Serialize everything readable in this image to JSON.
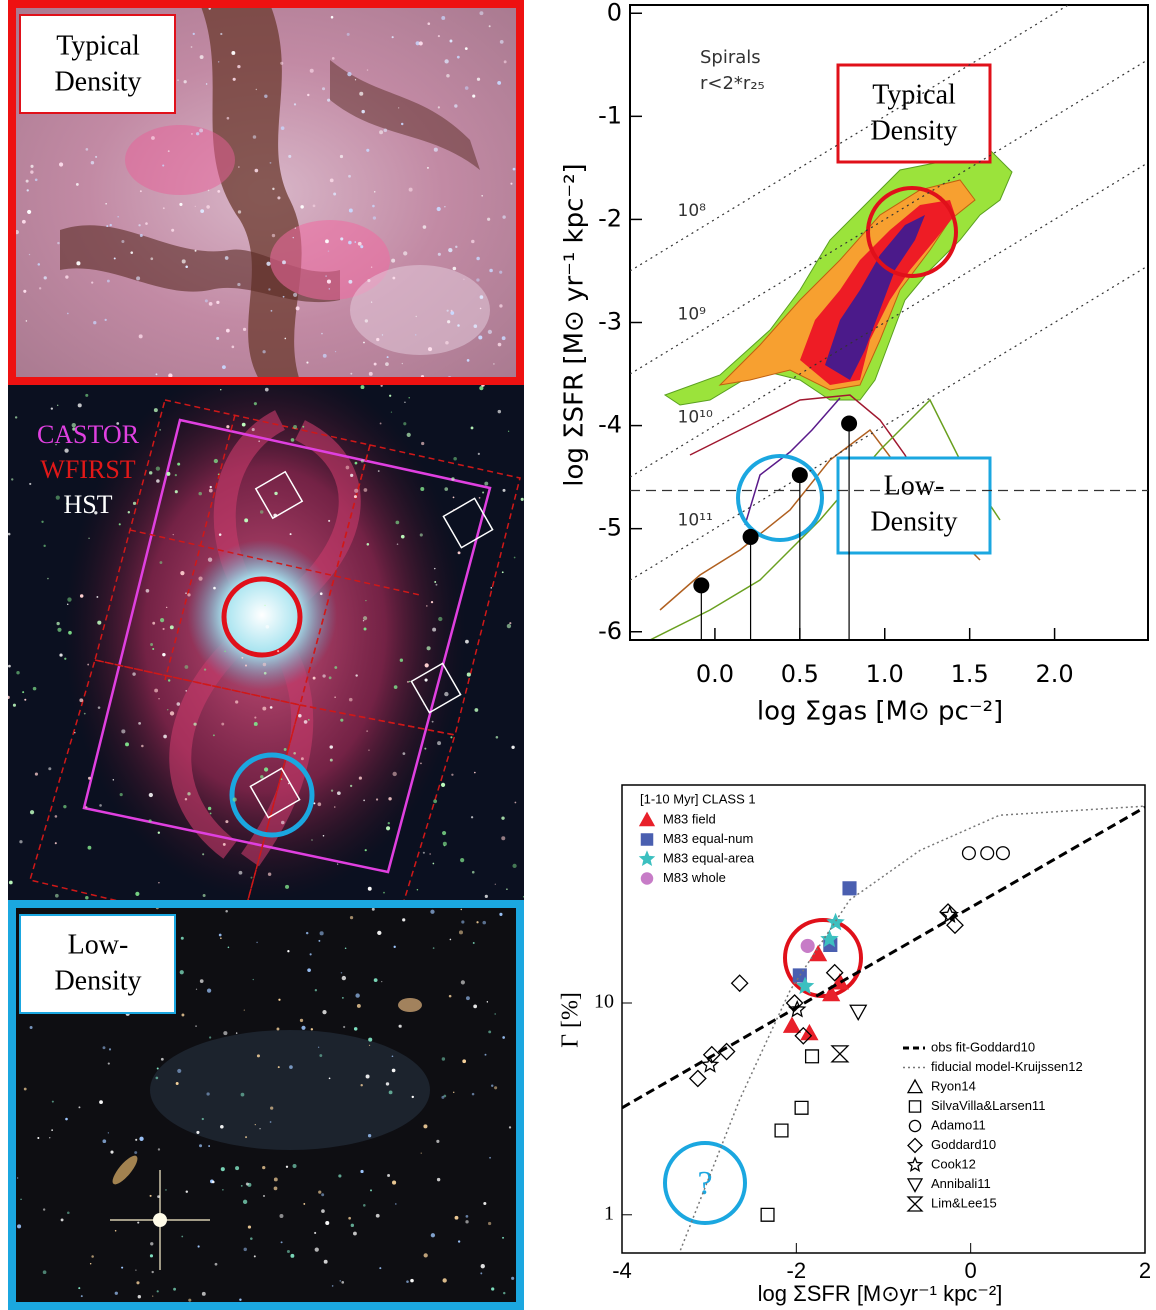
{
  "images": {
    "typical_density": [
      "Typical",
      "Density"
    ],
    "galaxy_legend": [
      "CASTOR",
      "WFIRST",
      "HST"
    ],
    "low_density": [
      "Low-",
      "Density"
    ]
  },
  "chart_data": [
    {
      "type": "scatter",
      "x_label": "log Σgas [M⊙ pc⁻²]",
      "y_label": "log ΣSFR [M⊙ yr⁻¹ kpc⁻²]",
      "annotations": [
        "Spirals",
        "r<2*r₂₅"
      ],
      "boxes": [
        {
          "lines": [
            "Typical",
            "Density"
          ],
          "color": "#e0101a"
        },
        {
          "lines": [
            "Low-",
            "Density"
          ],
          "color": "#1ba7e0"
        }
      ],
      "x": [
        -0.08,
        0.21,
        0.5,
        0.79
      ],
      "values": [
        -5.55,
        -5.08,
        -4.48,
        -3.98
      ],
      "color": "#000000",
      "hline": -4.63,
      "depletion_lines": [
        {
          "value": 100000000,
          "label": "10⁸"
        },
        {
          "value": 1000000000,
          "label": "10⁹"
        },
        {
          "value": 10000000000,
          "label": "10¹⁰"
        },
        {
          "value": 100000000000,
          "label": "10¹¹"
        }
      ],
      "xlim": [
        -0.5,
        2.55
      ],
      "ylim": [
        -6.08,
        0.08
      ],
      "xticks": [
        {
          "value": 0,
          "label": "0.0"
        },
        {
          "value": 0.5,
          "label": "0.5"
        },
        {
          "value": 1,
          "label": "1.0"
        },
        {
          "value": 1.5,
          "label": "1.5"
        },
        {
          "value": 2,
          "label": "2.0"
        }
      ],
      "yticks": [
        0,
        -1,
        -2,
        -3,
        -4,
        -5,
        -6
      ]
    },
    {
      "type": "scatter",
      "x_label": "log ΣSFR [M⊙yr⁻¹ kpc⁻²]",
      "y_label": "Γ [%]",
      "legend_title": "[1-10 Myr] CLASS 1",
      "annotation": "?",
      "xlim": [
        -4,
        2
      ],
      "ylim": [
        0.66,
        107
      ],
      "ylog": true,
      "xticks": [
        -4,
        -2,
        0,
        2
      ],
      "yticks": [
        1,
        10
      ],
      "series": [
        {
          "name": "M83 field",
          "color": "#e8202a",
          "marker": "triangle",
          "filled": true,
          "legend": "upper left",
          "x": [
            -2.05,
            -1.85,
            -1.75,
            -1.6,
            -1.5
          ],
          "values": [
            7.8,
            7.2,
            17,
            11,
            12.5
          ]
        },
        {
          "name": "M83 equal-num",
          "color": "#4a5fb0",
          "marker": "square",
          "filled": true,
          "legend": "upper left",
          "x": [
            -1.39,
            -1.61,
            -1.96
          ],
          "values": [
            34.8,
            18.8,
            13.5
          ]
        },
        {
          "name": "M83 equal-area",
          "color": "#3cc0c0",
          "marker": "star",
          "filled": true,
          "legend": "upper left",
          "x": [
            -1.62,
            -1.9,
            -1.55
          ],
          "values": [
            20,
            12,
            24
          ]
        },
        {
          "name": "M83 whole",
          "color": "#c77cc7",
          "marker": "circle",
          "filled": true,
          "legend": "upper left",
          "x": [
            -1.87
          ],
          "values": [
            18.6
          ]
        },
        {
          "name": "obs fit-Goddard10",
          "color": "#000000",
          "style": "dashed",
          "legend": "lower right",
          "x": [
            -4,
            2
          ],
          "values": [
            3.2,
            84
          ]
        },
        {
          "name": "fiducial model-Kruijssen12",
          "color": "#777777",
          "style": "dotted",
          "legend": "lower right",
          "x": [
            -3.33,
            -2.65,
            -2.07,
            -1.39,
            -0.58,
            0.33,
            2
          ],
          "values": [
            0.68,
            3.5,
            11.5,
            30.6,
            52.6,
            77,
            85
          ]
        },
        {
          "name": "Ryon14",
          "color": "#000000",
          "marker": "triangle",
          "legend": "lower right",
          "x": [],
          "values": []
        },
        {
          "name": "SilvaVilla&Larsen11",
          "color": "#000000",
          "marker": "square",
          "legend": "lower right",
          "x": [
            -2.33,
            -2.17,
            -1.94,
            -1.82
          ],
          "values": [
            1.0,
            2.5,
            3.2,
            5.6
          ]
        },
        {
          "name": "Adamo11",
          "color": "#000000",
          "marker": "circle",
          "legend": "lower right",
          "x": [
            -0.02,
            0.19,
            0.37
          ],
          "values": [
            51,
            51,
            51
          ]
        },
        {
          "name": "Goddard10",
          "color": "#000000",
          "marker": "diamond",
          "legend": "lower right",
          "x": [
            -3.13,
            -2.97,
            -2.8,
            -2.65,
            -2.02,
            -1.92,
            -1.56,
            -0.26,
            -0.18
          ],
          "values": [
            4.4,
            5.7,
            5.9,
            12.4,
            10,
            7,
            13.9,
            26.9,
            23.3
          ]
        },
        {
          "name": "Cook12",
          "color": "#000000",
          "marker": "star",
          "legend": "lower right",
          "x": [
            -2.99,
            -0.24,
            -1.99
          ],
          "values": [
            5.1,
            26,
            9.3
          ]
        },
        {
          "name": "Annibali11",
          "color": "#000000",
          "marker": "down",
          "legend": "lower right",
          "x": [
            -1.29
          ],
          "values": [
            9.1
          ]
        },
        {
          "name": "Lim&Lee15",
          "color": "#000000",
          "marker": "hourglass",
          "legend": "lower right",
          "x": [
            -1.5
          ],
          "values": [
            5.75
          ]
        }
      ]
    }
  ]
}
